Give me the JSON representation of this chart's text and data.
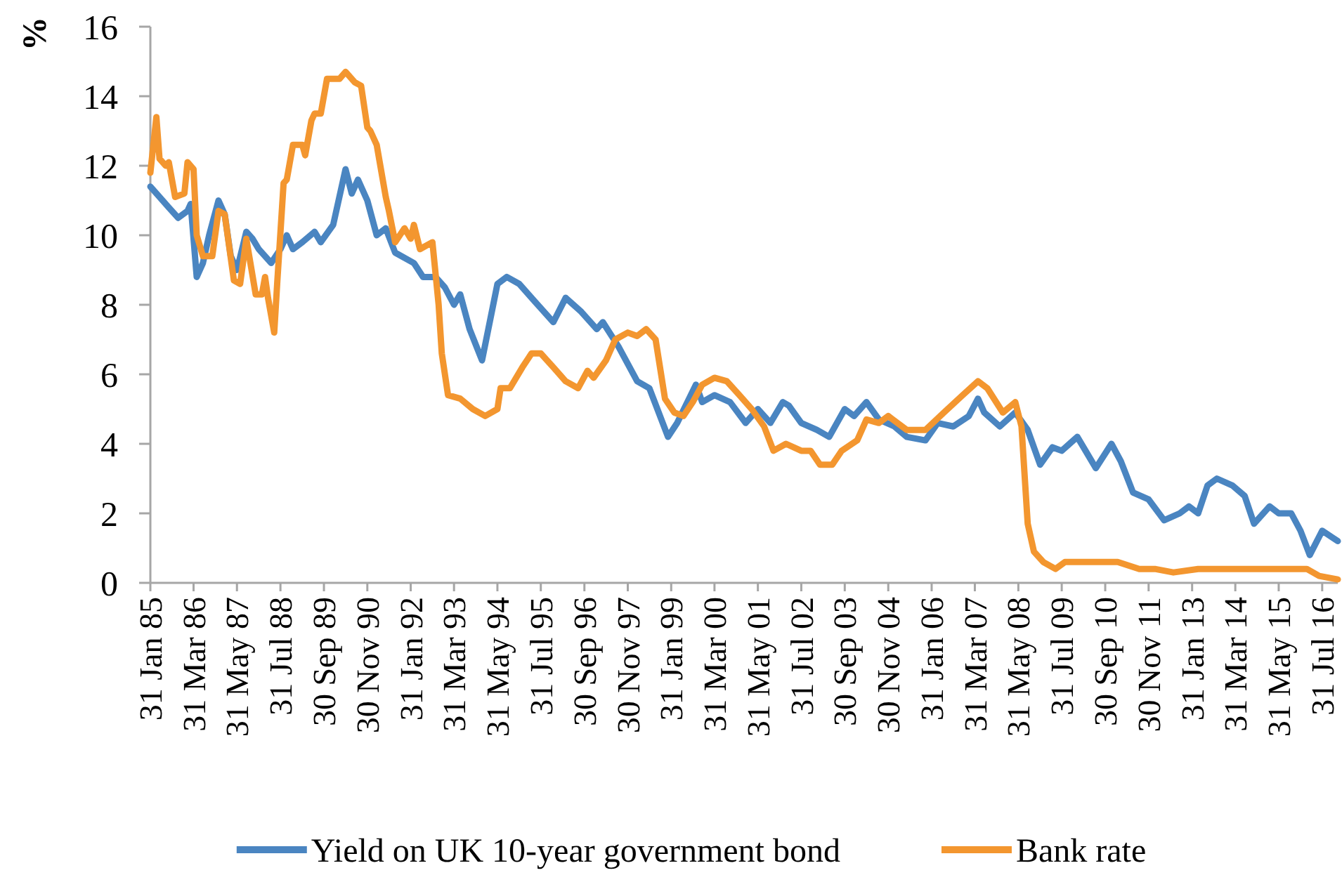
{
  "chart_data": {
    "type": "line",
    "ylabel": "%",
    "series": [
      {
        "name": "Yield on UK 10-year government bond",
        "color": "#4a85c1",
        "x": [
          "1985-01",
          "1985-04",
          "1985-07",
          "1985-10",
          "1986-01",
          "1986-02",
          "1986-04",
          "1986-06",
          "1986-08",
          "1986-11",
          "1987-01",
          "1987-03",
          "1987-05",
          "1987-08",
          "1987-10",
          "1987-12",
          "1988-04",
          "1988-07",
          "1988-09",
          "1988-11",
          "1989-02",
          "1989-06",
          "1989-08",
          "1989-12",
          "1990-04",
          "1990-06",
          "1990-08",
          "1990-11",
          "1991-02",
          "1991-05",
          "1991-08",
          "1992-02",
          "1992-05",
          "1992-09",
          "1992-12",
          "1993-03",
          "1993-05",
          "1993-08",
          "1993-12",
          "1994-05",
          "1994-08",
          "1994-12",
          "1995-05",
          "1995-11",
          "1996-03",
          "1996-08",
          "1997-01",
          "1997-03",
          "1997-08",
          "1998-02",
          "1998-06",
          "1998-12",
          "1999-03",
          "1999-09",
          "1999-11",
          "2000-03",
          "2000-08",
          "2001-01",
          "2001-05",
          "2001-09",
          "2002-01",
          "2002-03",
          "2002-07",
          "2002-12",
          "2003-04",
          "2003-09",
          "2003-12",
          "2004-04",
          "2004-08",
          "2005-01",
          "2005-05",
          "2005-11",
          "2006-03",
          "2006-08",
          "2007-01",
          "2007-04",
          "2007-06",
          "2007-11",
          "2008-04",
          "2008-08",
          "2008-12",
          "2009-04",
          "2009-07",
          "2009-12",
          "2010-06",
          "2010-11",
          "2011-02",
          "2011-06",
          "2011-11",
          "2012-04",
          "2012-09",
          "2012-12",
          "2013-03",
          "2013-06",
          "2013-09",
          "2014-02",
          "2014-06",
          "2014-09",
          "2015-02",
          "2015-05",
          "2015-09",
          "2015-12",
          "2016-03",
          "2016-07",
          "2016-12"
        ],
        "values": [
          11.4,
          11.1,
          10.8,
          10.5,
          10.7,
          10.9,
          8.8,
          9.2,
          10.0,
          11.0,
          10.6,
          9.4,
          9.0,
          10.1,
          9.9,
          9.6,
          9.2,
          9.6,
          10.0,
          9.6,
          9.8,
          10.1,
          9.8,
          10.3,
          11.9,
          11.2,
          11.6,
          11.0,
          10.0,
          10.2,
          9.5,
          9.2,
          8.8,
          8.8,
          8.5,
          8.0,
          8.3,
          7.3,
          6.4,
          8.6,
          8.8,
          8.6,
          8.1,
          7.5,
          8.2,
          7.8,
          7.3,
          7.5,
          6.8,
          5.8,
          5.6,
          4.2,
          4.6,
          5.7,
          5.2,
          5.4,
          5.2,
          4.6,
          5.0,
          4.6,
          5.2,
          5.1,
          4.6,
          4.4,
          4.2,
          5.0,
          4.8,
          5.2,
          4.7,
          4.5,
          4.2,
          4.1,
          4.6,
          4.5,
          4.8,
          5.3,
          4.9,
          4.5,
          4.9,
          4.4,
          3.4,
          3.9,
          3.8,
          4.2,
          3.3,
          4.0,
          3.5,
          2.6,
          2.4,
          1.8,
          2.0,
          2.2,
          2.0,
          2.8,
          3.0,
          2.8,
          2.5,
          1.7,
          2.2,
          2.0,
          2.0,
          1.5,
          0.8,
          1.5,
          1.2
        ]
      },
      {
        "name": "Bank rate",
        "color": "#f3962f",
        "x": [
          "1985-01",
          "1985-03",
          "1985-04",
          "1985-06",
          "1985-07",
          "1985-09",
          "1985-12",
          "1986-01",
          "1986-03",
          "1986-04",
          "1986-06",
          "1986-09",
          "1986-11",
          "1987-01",
          "1987-04",
          "1987-06",
          "1987-08",
          "1987-11",
          "1988-01",
          "1988-02",
          "1988-03",
          "1988-05",
          "1988-06",
          "1988-08",
          "1988-09",
          "1988-11",
          "1989-02",
          "1989-03",
          "1989-05",
          "1989-06",
          "1989-08",
          "1989-10",
          "1990-02",
          "1990-04",
          "1990-07",
          "1990-09",
          "1990-11",
          "1990-12",
          "1991-02",
          "1991-05",
          "1991-06",
          "1991-08",
          "1991-11",
          "1992-01",
          "1992-02",
          "1992-04",
          "1992-08",
          "1992-10",
          "1992-11",
          "1993-01",
          "1993-05",
          "1993-09",
          "1994-01",
          "1994-05",
          "1994-06",
          "1994-09",
          "1995-01",
          "1995-04",
          "1995-07",
          "1995-11",
          "1996-03",
          "1996-07",
          "1996-10",
          "1996-12",
          "1997-04",
          "1997-07",
          "1997-11",
          "1998-02",
          "1998-05",
          "1998-08",
          "1998-11",
          "1999-02",
          "1999-05",
          "1999-08",
          "1999-11",
          "2000-03",
          "2000-07",
          "2000-11",
          "2001-03",
          "2001-07",
          "2001-10",
          "2002-02",
          "2002-07",
          "2002-10",
          "2003-01",
          "2003-05",
          "2003-08",
          "2004-01",
          "2004-04",
          "2004-08",
          "2004-11",
          "2005-05",
          "2005-11",
          "2006-05",
          "2006-11",
          "2007-04",
          "2007-07",
          "2007-12",
          "2008-04",
          "2008-06",
          "2008-08",
          "2008-10",
          "2009-01",
          "2009-05",
          "2009-08",
          "2010-11",
          "2011-01",
          "2011-08",
          "2011-10",
          "2012-01",
          "2012-07",
          "2013-03",
          "2013-09",
          "2014-04",
          "2014-11",
          "2015-09",
          "2016-02",
          "2016-06",
          "2016-12"
        ],
        "values": [
          11.8,
          13.4,
          12.2,
          12.0,
          12.1,
          11.1,
          11.2,
          12.1,
          11.9,
          10.0,
          9.4,
          9.4,
          10.7,
          10.6,
          8.7,
          8.6,
          9.9,
          8.3,
          8.3,
          8.8,
          8.2,
          7.2,
          8.7,
          11.5,
          11.6,
          12.6,
          12.6,
          12.3,
          13.3,
          13.5,
          13.5,
          14.5,
          14.5,
          14.7,
          14.4,
          14.3,
          13.1,
          13.0,
          12.6,
          11.1,
          10.7,
          9.8,
          10.2,
          9.9,
          10.3,
          9.6,
          9.8,
          8.0,
          6.6,
          5.4,
          5.3,
          5.0,
          4.8,
          5.0,
          5.6,
          5.6,
          6.2,
          6.6,
          6.6,
          6.2,
          5.8,
          5.6,
          6.1,
          5.9,
          6.4,
          7.0,
          7.2,
          7.1,
          7.3,
          7.0,
          5.3,
          4.9,
          4.8,
          5.2,
          5.7,
          5.9,
          5.8,
          5.4,
          5.0,
          4.5,
          3.8,
          4.0,
          3.8,
          3.8,
          3.4,
          3.4,
          3.8,
          4.1,
          4.7,
          4.6,
          4.8,
          4.4,
          4.4,
          4.9,
          5.4,
          5.8,
          5.6,
          4.9,
          5.2,
          4.5,
          1.7,
          0.9,
          0.6,
          0.4,
          0.6,
          0.6,
          0.6,
          0.4,
          0.4,
          0.4,
          0.3,
          0.4,
          0.4,
          0.4,
          0.4,
          0.4,
          0.4,
          0.2,
          0.1
        ]
      }
    ],
    "xlim": [
      "1985-01",
      "2016-12"
    ],
    "xticks": [
      {
        "value": "1985-01",
        "label": "31 Jan 85"
      },
      {
        "value": "1986-03",
        "label": "31 Mar 86"
      },
      {
        "value": "1987-05",
        "label": "31 May 87"
      },
      {
        "value": "1988-07",
        "label": "31 Jul 88"
      },
      {
        "value": "1989-09",
        "label": "30 Sep 89"
      },
      {
        "value": "1990-11",
        "label": "30 Nov 90"
      },
      {
        "value": "1992-01",
        "label": "31 Jan 92"
      },
      {
        "value": "1993-03",
        "label": "31 Mar 93"
      },
      {
        "value": "1994-05",
        "label": "31 May 94"
      },
      {
        "value": "1995-07",
        "label": "31 Jul 95"
      },
      {
        "value": "1996-09",
        "label": "30 Sep 96"
      },
      {
        "value": "1997-11",
        "label": "30 Nov 97"
      },
      {
        "value": "1999-01",
        "label": "31 Jan 99"
      },
      {
        "value": "2000-03",
        "label": "31 Mar 00"
      },
      {
        "value": "2001-05",
        "label": "31 May 01"
      },
      {
        "value": "2002-07",
        "label": "31 Jul 02"
      },
      {
        "value": "2003-09",
        "label": "30 Sep 03"
      },
      {
        "value": "2004-11",
        "label": "30 Nov 04"
      },
      {
        "value": "2006-01",
        "label": "31 Jan 06"
      },
      {
        "value": "2007-03",
        "label": "31 Mar 07"
      },
      {
        "value": "2008-05",
        "label": "31 May 08"
      },
      {
        "value": "2009-07",
        "label": "31 Jul 09"
      },
      {
        "value": "2010-09",
        "label": "30 Sep 10"
      },
      {
        "value": "2011-11",
        "label": "30 Nov 11"
      },
      {
        "value": "2013-01",
        "label": "31 Jan 13"
      },
      {
        "value": "2014-03",
        "label": "31 Mar 14"
      },
      {
        "value": "2015-05",
        "label": "31 May 15"
      },
      {
        "value": "2016-07",
        "label": "31 Jul 16"
      }
    ],
    "ylim": [
      0,
      16
    ],
    "yticks": [
      0,
      2,
      4,
      6,
      8,
      10,
      12,
      14,
      16
    ],
    "legend": "bottom"
  }
}
